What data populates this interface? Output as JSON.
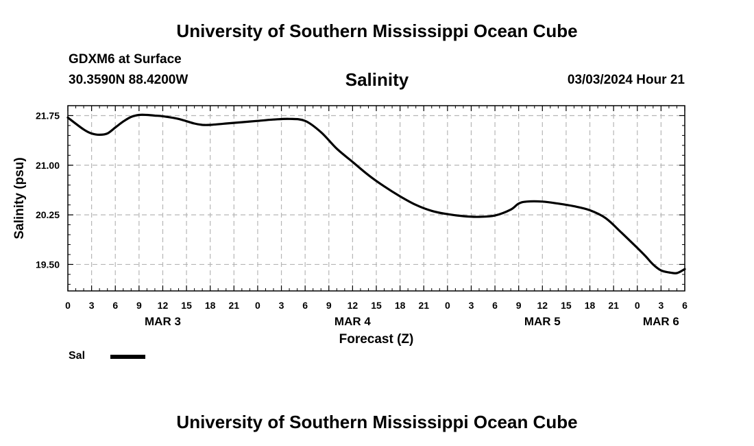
{
  "header": {
    "title": "University of Southern Mississippi Ocean Cube",
    "station": "GDXM6 at Surface",
    "coords": "30.3590N  88.4200W",
    "parameter": "Salinity",
    "datetime": "03/03/2024 Hour 21"
  },
  "footer": {
    "title": "University of Southern Mississippi Ocean Cube"
  },
  "legend": {
    "label": "Sal"
  },
  "chart_data": {
    "type": "line",
    "xlabel": "Forecast (Z)",
    "ylabel": "Salinity (psu)",
    "xlim": [
      0,
      78
    ],
    "ylim": [
      19.1,
      21.9
    ],
    "grid": true,
    "x_tick_hours": [
      0,
      3,
      6,
      9,
      12,
      15,
      18,
      21,
      24,
      27,
      30,
      33,
      36,
      39,
      42,
      45,
      48,
      51,
      54,
      57,
      60,
      63,
      66,
      69,
      72,
      75,
      78
    ],
    "x_tick_labels": [
      "0",
      "3",
      "6",
      "9",
      "12",
      "15",
      "18",
      "21",
      "0",
      "3",
      "6",
      "9",
      "12",
      "15",
      "18",
      "21",
      "0",
      "3",
      "6",
      "9",
      "12",
      "15",
      "18",
      "21",
      "0",
      "3",
      "6"
    ],
    "day_labels": [
      {
        "hour": 12,
        "label": "MAR 3"
      },
      {
        "hour": 36,
        "label": "MAR 4"
      },
      {
        "hour": 60,
        "label": "MAR 5"
      },
      {
        "hour": 75,
        "label": "MAR 6"
      }
    ],
    "y_ticks": [
      19.5,
      20.25,
      21.0,
      21.75
    ],
    "y_tick_labels": [
      "19.50",
      "20.25",
      "21.00",
      "21.75"
    ],
    "series": [
      {
        "name": "Sal",
        "x": [
          0,
          2,
          3,
          4,
          5,
          6,
          7,
          8,
          9,
          10,
          11,
          12,
          14,
          16,
          17,
          18,
          20,
          22,
          24,
          26,
          28,
          30,
          32,
          34,
          36,
          38,
          40,
          42,
          44,
          46,
          48,
          50,
          52,
          54,
          56,
          57,
          58,
          60,
          62,
          64,
          66,
          68,
          70,
          72,
          73,
          74,
          75,
          76,
          77,
          78
        ],
        "values": [
          21.72,
          21.54,
          21.48,
          21.46,
          21.48,
          21.57,
          21.66,
          21.73,
          21.76,
          21.76,
          21.75,
          21.74,
          21.7,
          21.63,
          21.61,
          21.61,
          21.63,
          21.65,
          21.67,
          21.69,
          21.7,
          21.67,
          21.5,
          21.25,
          21.05,
          20.85,
          20.68,
          20.53,
          20.4,
          20.31,
          20.26,
          20.23,
          20.22,
          20.24,
          20.33,
          20.42,
          20.45,
          20.45,
          20.42,
          20.38,
          20.32,
          20.2,
          19.98,
          19.75,
          19.63,
          19.5,
          19.41,
          19.38,
          19.37,
          19.43
        ]
      }
    ]
  }
}
